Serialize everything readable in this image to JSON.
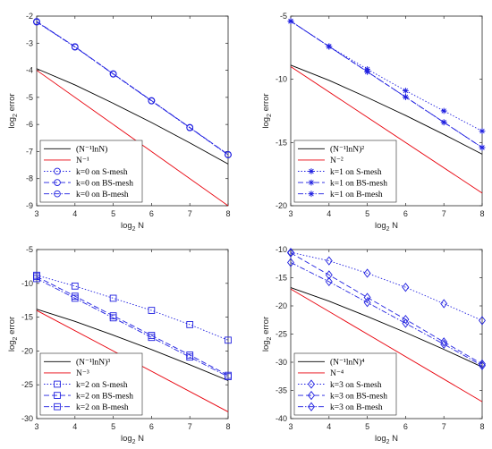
{
  "chart_data": [
    {
      "type": "line",
      "xlabel": "log",
      "xlabel_sub": "2",
      "xlabel_tail": " N",
      "ylabel": "log",
      "ylabel_sub": "2",
      "ylabel_tail": " error",
      "xlim": [
        3,
        8
      ],
      "ylim": [
        -9,
        -2
      ],
      "xticks": [
        3,
        4,
        5,
        6,
        7,
        8
      ],
      "yticks": [
        -9,
        -8,
        -7,
        -6,
        -5,
        -4,
        -3,
        -2
      ],
      "legend_position": "bottom-left",
      "series": [
        {
          "name": "(N⁻¹lnN)",
          "color": "#000000",
          "dash": "",
          "marker": "none",
          "x": [
            3,
            4,
            5,
            6,
            7,
            8
          ],
          "y": [
            -3.94,
            -4.54,
            -5.22,
            -5.93,
            -6.68,
            -7.46
          ]
        },
        {
          "name": "N⁻¹",
          "color": "#e8000b",
          "dash": "",
          "marker": "none",
          "x": [
            3,
            8
          ],
          "y": [
            -4.0,
            -9.0
          ]
        },
        {
          "name": "k=0 on S-mesh",
          "color": "#1f1fe0",
          "dash": "1.5,2",
          "marker": "circle",
          "x": [
            3,
            4,
            5,
            6,
            7,
            8
          ],
          "y": [
            -2.22,
            -3.14,
            -4.14,
            -5.13,
            -6.12,
            -7.12
          ]
        },
        {
          "name": "k=0 on BS-mesh",
          "color": "#1f1fe0",
          "dash": "6,3",
          "marker": "circle",
          "x": [
            3,
            4,
            5,
            6,
            7,
            8
          ],
          "y": [
            -2.2,
            -3.13,
            -4.13,
            -5.12,
            -6.11,
            -7.11
          ]
        },
        {
          "name": "k=0 on B-mesh",
          "color": "#1f1fe0",
          "dash": "6,2,1.5,2",
          "marker": "circle",
          "x": [
            3,
            4,
            5,
            6,
            7,
            8
          ],
          "y": [
            -2.21,
            -3.14,
            -4.14,
            -5.13,
            -6.12,
            -7.12
          ]
        }
      ]
    },
    {
      "type": "line",
      "xlabel": "log",
      "xlabel_sub": "2",
      "xlabel_tail": " N",
      "ylabel": "log",
      "ylabel_sub": "2",
      "ylabel_tail": " error",
      "xlim": [
        3,
        8
      ],
      "ylim": [
        -20,
        -5
      ],
      "xticks": [
        3,
        4,
        5,
        6,
        7,
        8
      ],
      "yticks": [
        -20,
        -15,
        -10,
        -5
      ],
      "legend_position": "bottom-left",
      "series": [
        {
          "name": "(N⁻¹lnN)²",
          "color": "#000000",
          "dash": "",
          "marker": "none",
          "x": [
            3,
            4,
            5,
            6,
            7,
            8
          ],
          "y": [
            -8.88,
            -10.08,
            -11.44,
            -12.86,
            -14.36,
            -15.92
          ]
        },
        {
          "name": "N⁻²",
          "color": "#e8000b",
          "dash": "",
          "marker": "none",
          "x": [
            3,
            8
          ],
          "y": [
            -9.0,
            -19.0
          ]
        },
        {
          "name": "k=1 on S-mesh",
          "color": "#1f1fe0",
          "dash": "1.5,2",
          "marker": "star",
          "x": [
            3,
            4,
            5,
            6,
            7,
            8
          ],
          "y": [
            -5.4,
            -7.4,
            -9.2,
            -10.9,
            -12.5,
            -14.1
          ]
        },
        {
          "name": "k=1 on BS-mesh",
          "color": "#1f1fe0",
          "dash": "6,3",
          "marker": "star",
          "x": [
            3,
            4,
            5,
            6,
            7,
            8
          ],
          "y": [
            -5.4,
            -7.4,
            -9.4,
            -11.4,
            -13.4,
            -15.4
          ]
        },
        {
          "name": "k=1 on B-mesh",
          "color": "#1f1fe0",
          "dash": "6,2,1.5,2",
          "marker": "star",
          "x": [
            3,
            4,
            5,
            6,
            7,
            8
          ],
          "y": [
            -5.4,
            -7.4,
            -9.4,
            -11.4,
            -13.4,
            -15.4
          ]
        }
      ]
    },
    {
      "type": "line",
      "xlabel": "log",
      "xlabel_sub": "2",
      "xlabel_tail": " N",
      "ylabel": "log",
      "ylabel_sub": "2",
      "ylabel_tail": " error",
      "xlim": [
        3,
        8
      ],
      "ylim": [
        -30,
        -5
      ],
      "xticks": [
        3,
        4,
        5,
        6,
        7,
        8
      ],
      "yticks": [
        -30,
        -25,
        -20,
        -15,
        -10,
        -5
      ],
      "legend_position": "bottom-left",
      "series": [
        {
          "name": "(N⁻¹lnN)³",
          "color": "#000000",
          "dash": "",
          "marker": "none",
          "x": [
            3,
            4,
            5,
            6,
            7,
            8
          ],
          "y": [
            -13.82,
            -15.62,
            -17.66,
            -19.79,
            -22.04,
            -24.38
          ]
        },
        {
          "name": "N⁻³",
          "color": "#e8000b",
          "dash": "",
          "marker": "none",
          "x": [
            3,
            8
          ],
          "y": [
            -14.0,
            -29.0
          ]
        },
        {
          "name": "k=2 on S-mesh",
          "color": "#1f1fe0",
          "dash": "1.5,2",
          "marker": "square",
          "x": [
            3,
            4,
            5,
            6,
            7,
            8
          ],
          "y": [
            -8.8,
            -10.4,
            -12.2,
            -14.0,
            -16.1,
            -18.4
          ]
        },
        {
          "name": "k=2 on BS-mesh",
          "color": "#1f1fe0",
          "dash": "6,3",
          "marker": "square",
          "x": [
            3,
            4,
            5,
            6,
            7,
            8
          ],
          "y": [
            -9.0,
            -11.9,
            -14.8,
            -17.7,
            -20.6,
            -23.6
          ]
        },
        {
          "name": "k=2 on B-mesh",
          "color": "#1f1fe0",
          "dash": "6,2,1.5,2",
          "marker": "square",
          "x": [
            3,
            4,
            5,
            6,
            7,
            8
          ],
          "y": [
            -9.3,
            -12.2,
            -15.1,
            -18.0,
            -20.9,
            -23.8
          ]
        }
      ]
    },
    {
      "type": "line",
      "xlabel": "log",
      "xlabel_sub": "2",
      "xlabel_tail": " N",
      "ylabel": "log",
      "ylabel_sub": "2",
      "ylabel_tail": " error",
      "xlim": [
        3,
        8
      ],
      "ylim": [
        -40,
        -10
      ],
      "xticks": [
        3,
        4,
        5,
        6,
        7,
        8
      ],
      "yticks": [
        -40,
        -35,
        -30,
        -25,
        -20,
        -15,
        -10
      ],
      "legend_position": "bottom-left",
      "series": [
        {
          "name": "(N⁻¹lnN)⁴",
          "color": "#000000",
          "dash": "",
          "marker": "none",
          "x": [
            3,
            4,
            5,
            6,
            7,
            8
          ],
          "y": [
            -16.76,
            -19.16,
            -21.88,
            -24.72,
            -27.72,
            -30.84
          ]
        },
        {
          "name": "N⁻⁴",
          "color": "#e8000b",
          "dash": "",
          "marker": "none",
          "x": [
            3,
            8
          ],
          "y": [
            -17.0,
            -37.0
          ]
        },
        {
          "name": "k=3 on S-mesh",
          "color": "#1f1fe0",
          "dash": "1.5,2",
          "marker": "diamond",
          "x": [
            3,
            4,
            5,
            6,
            7,
            8
          ],
          "y": [
            -10.5,
            -12.0,
            -14.2,
            -16.7,
            -19.6,
            -22.6
          ]
        },
        {
          "name": "k=3 on BS-mesh",
          "color": "#1f1fe0",
          "dash": "6,3",
          "marker": "diamond",
          "x": [
            3,
            4,
            5,
            6,
            7,
            8
          ],
          "y": [
            -10.6,
            -14.5,
            -18.5,
            -22.4,
            -26.4,
            -30.3
          ]
        },
        {
          "name": "k=3 on B-mesh",
          "color": "#1f1fe0",
          "dash": "6,2,1.5,2",
          "marker": "diamond",
          "x": [
            3,
            4,
            5,
            6,
            7,
            8
          ],
          "y": [
            -12.3,
            -15.7,
            -19.4,
            -23.1,
            -26.8,
            -30.6
          ]
        }
      ]
    }
  ]
}
